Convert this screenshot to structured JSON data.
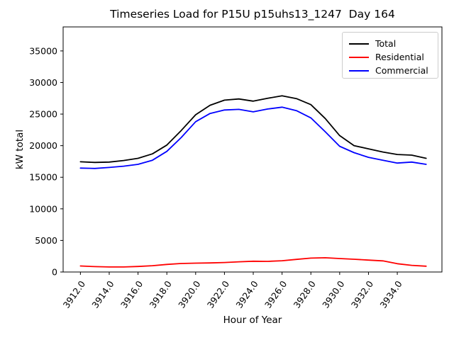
{
  "figure": {
    "background": "#ffffff"
  },
  "chart_data": {
    "type": "line",
    "title": "Timeseries Load for P15U p15uhs13_1247  Day 164",
    "xlabel": "Hour of Year",
    "ylabel": "kW total",
    "grid": false,
    "legend_position": "upper right",
    "xlim": [
      3910.8,
      3937.1
    ],
    "ylim": [
      0,
      38800
    ],
    "xticks": {
      "values": [
        3912,
        3914,
        3916,
        3918,
        3920,
        3922,
        3924,
        3926,
        3928,
        3930,
        3932,
        3934
      ],
      "labels": [
        "3912.0",
        "3914.0",
        "3916.0",
        "3918.0",
        "3920.0",
        "3922.0",
        "3924.0",
        "3926.0",
        "3928.0",
        "3930.0",
        "3932.0",
        "3934.0"
      ]
    },
    "yticks": {
      "values": [
        0,
        5000,
        10000,
        15000,
        20000,
        25000,
        30000,
        35000
      ],
      "labels": [
        "0",
        "5000",
        "10000",
        "15000",
        "20000",
        "25000",
        "30000",
        "35000"
      ]
    },
    "x": [
      3912,
      3913,
      3914,
      3915,
      3916,
      3917,
      3918,
      3919,
      3920,
      3921,
      3922,
      3923,
      3924,
      3925,
      3926,
      3927,
      3928,
      3929,
      3930,
      3931,
      3932,
      3933,
      3934,
      3935,
      3936
    ],
    "series": [
      {
        "name": "Total",
        "color": "#000000",
        "values": [
          17450,
          17350,
          17400,
          17650,
          18000,
          18700,
          20100,
          22400,
          24900,
          26400,
          27200,
          27400,
          27050,
          27500,
          27900,
          27450,
          26500,
          24300,
          21600,
          20000,
          19500,
          19000,
          18600,
          18500,
          18000
        ]
      },
      {
        "name": "Residential",
        "color": "#ff0000",
        "values": [
          950,
          850,
          800,
          800,
          880,
          1000,
          1200,
          1350,
          1400,
          1430,
          1500,
          1620,
          1700,
          1680,
          1780,
          2000,
          2200,
          2250,
          2130,
          2020,
          1880,
          1760,
          1310,
          1050,
          920
        ]
      },
      {
        "name": "Commercial",
        "color": "#0000ff",
        "values": [
          16450,
          16400,
          16550,
          16750,
          17050,
          17700,
          19100,
          21300,
          23800,
          25100,
          25650,
          25750,
          25350,
          25800,
          26100,
          25550,
          24400,
          22200,
          19900,
          18900,
          18150,
          17700,
          17250,
          17400,
          17050
        ]
      }
    ]
  }
}
